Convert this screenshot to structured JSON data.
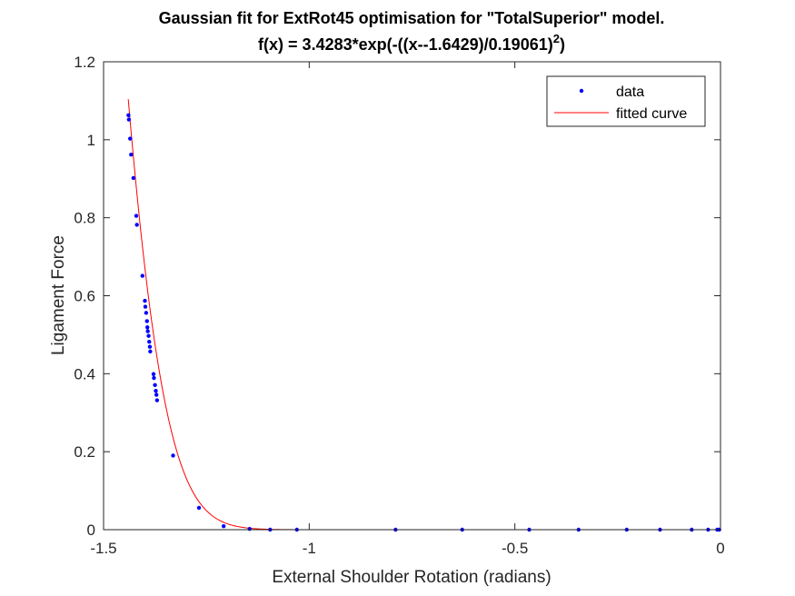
{
  "chart_data": {
    "type": "scatter",
    "title_line1": "Gaussian fit for ExtRot45 optimisation for \"TotalSuperior\" model.",
    "title_line2_main": "f(x) = 3.4283*exp(-((x--1.6429)/0.19061)",
    "title_line2_sup": "2",
    "title_line2_end": ")",
    "xlabel": "External Shoulder Rotation (radians)",
    "ylabel": "Ligament Force",
    "xlim": [
      -1.5,
      0
    ],
    "ylim": [
      0,
      1.2
    ],
    "xticks": [
      -1.5,
      -1,
      -0.5,
      0
    ],
    "xtick_labels": [
      "-1.5",
      "-1",
      "-0.5",
      "0"
    ],
    "yticks": [
      0,
      0.2,
      0.4,
      0.6,
      0.8,
      1,
      1.2
    ],
    "ytick_labels": [
      "0",
      "0.2",
      "0.4",
      "0.6",
      "0.8",
      "1",
      "1.2"
    ],
    "grid": false,
    "legend": {
      "placement": "top-right",
      "entries": [
        "data",
        "fitted curve"
      ]
    },
    "fit": {
      "a": 3.4283,
      "b": -1.6429,
      "c": 0.19061,
      "x_range": [
        -1.44,
        0
      ]
    },
    "series": [
      {
        "name": "data",
        "color": "#0000ff",
        "points": [
          [
            -1.4395,
            1.063
          ],
          [
            -1.4385,
            1.052
          ],
          [
            -1.4355,
            1.003
          ],
          [
            -1.433,
            0.962
          ],
          [
            -1.4275,
            0.902
          ],
          [
            -1.4205,
            0.805
          ],
          [
            -1.419,
            0.782
          ],
          [
            -1.4055,
            0.651
          ],
          [
            -1.3995,
            0.587
          ],
          [
            -1.3985,
            0.572
          ],
          [
            -1.3965,
            0.556
          ],
          [
            -1.3945,
            0.535
          ],
          [
            -1.3935,
            0.519
          ],
          [
            -1.3925,
            0.509
          ],
          [
            -1.3905,
            0.497
          ],
          [
            -1.389,
            0.482
          ],
          [
            -1.3875,
            0.469
          ],
          [
            -1.3865,
            0.457
          ],
          [
            -1.3785,
            0.399
          ],
          [
            -1.3775,
            0.389
          ],
          [
            -1.375,
            0.371
          ],
          [
            -1.373,
            0.356
          ],
          [
            -1.3715,
            0.346
          ],
          [
            -1.37,
            0.332
          ],
          [
            -1.331,
            0.19
          ],
          [
            -1.268,
            0.056
          ],
          [
            -1.208,
            0.009
          ],
          [
            -1.145,
            0.002
          ],
          [
            -1.095,
            0.0
          ],
          [
            -1.03,
            0.0
          ],
          [
            -0.79,
            0.0
          ],
          [
            -0.628,
            0.0
          ],
          [
            -0.465,
            0.0
          ],
          [
            -0.345,
            0.0
          ],
          [
            -0.228,
            0.0
          ],
          [
            -0.147,
            0.0
          ],
          [
            -0.07,
            0.0
          ],
          [
            -0.03,
            0.0
          ],
          [
            -0.008,
            0.0
          ],
          [
            -0.003,
            0.0
          ]
        ]
      },
      {
        "name": "fitted curve",
        "color": "#ff0000"
      }
    ]
  }
}
